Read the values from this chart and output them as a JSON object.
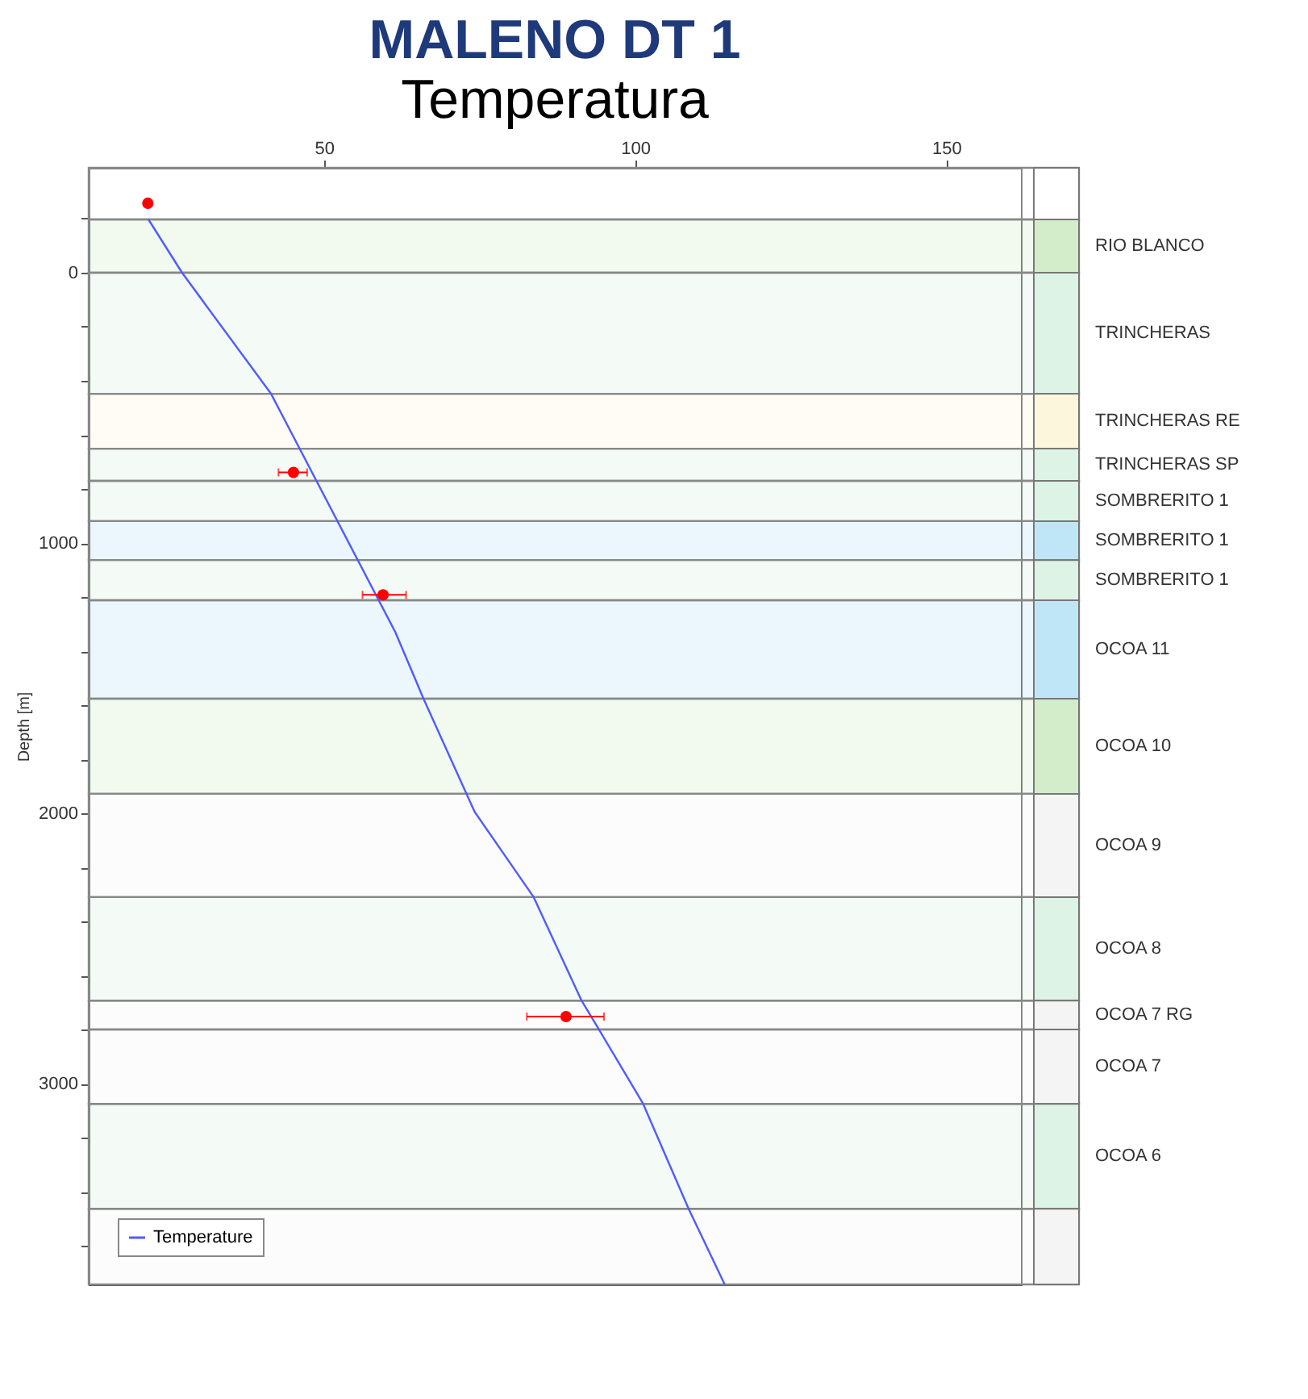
{
  "chart_data": {
    "type": "line",
    "title": "MALENO DT 1",
    "subtitle": "Temperatura",
    "ylabel": "Depth [m]",
    "legend": "bottom left",
    "xlim": [
      12.2,
      162
    ],
    "xticks": [
      50,
      100,
      150
    ],
    "ylim": [
      3743,
      -388
    ],
    "yticks": [
      {
        "value": -200,
        "label": null
      },
      0,
      {
        "value": 200,
        "label": null
      },
      {
        "value": 400,
        "label": null
      },
      {
        "value": 600,
        "label": null
      },
      {
        "value": 800,
        "label": null
      },
      1000,
      {
        "value": 1200,
        "label": null
      },
      {
        "value": 1400,
        "label": null
      },
      {
        "value": 1600,
        "label": null
      },
      {
        "value": 1800,
        "label": null
      },
      2000,
      {
        "value": 2200,
        "label": null
      },
      {
        "value": 2400,
        "label": null
      },
      {
        "value": 2600,
        "label": null
      },
      {
        "value": 2800,
        "label": null
      },
      3000,
      {
        "value": 3200,
        "label": null
      },
      {
        "value": 3400,
        "label": null
      },
      {
        "value": 3600,
        "label": null
      }
    ],
    "series": [
      {
        "name": "Temperature",
        "type": "line",
        "color": "#4f5bff",
        "x": [
          21.8,
          27.2,
          41.5,
          61.5,
          66,
          74.2,
          83.7,
          91.4,
          94.2,
          101.3,
          108.6,
          114.4
        ],
        "values": [
          -197,
          0,
          448,
          1331,
          1576,
          1994,
          2310,
          2693,
          2800,
          3075,
          3463,
          3743
        ]
      },
      {
        "type": "scatter",
        "color": "#ff0000",
        "marker": "circle",
        "x": [
          21.7,
          45.1,
          59.5,
          88.9
        ],
        "values": [
          -257,
          739,
          1192,
          2752
        ],
        "xerrors": [
          null,
          [
            42.7,
            47.3
          ],
          [
            56.2,
            63.2
          ],
          [
            82.6,
            95.0
          ]
        ]
      }
    ],
    "bands": [
      {
        "axis": "y",
        "from": -388,
        "to": -197,
        "label": null,
        "color": "#ffffff"
      },
      {
        "axis": "y",
        "from": -197,
        "to": 0,
        "label": "RIO BLANCO",
        "color": "#d3ecc9"
      },
      {
        "axis": "y",
        "from": 0,
        "to": 448,
        "label": "TRINCHERAS",
        "color": "#dcf3e6"
      },
      {
        "axis": "y",
        "from": 448,
        "to": 651,
        "label": "TRINCHERAS RE",
        "color": "#fcf6dc"
      },
      {
        "axis": "y",
        "from": 651,
        "to": 770,
        "label": "TRINCHERAS SP",
        "color": "#dcf3e6"
      },
      {
        "axis": "y",
        "from": 770,
        "to": 919,
        "label": "SOMBRERITO 1",
        "color": "#dcf3e6"
      },
      {
        "axis": "y",
        "from": 919,
        "to": 1063,
        "label": "SOMBRERITO 1",
        "color": "#bfe6f7"
      },
      {
        "axis": "y",
        "from": 1063,
        "to": 1212,
        "label": "SOMBRERITO 1",
        "color": "#dcf3e6"
      },
      {
        "axis": "y",
        "from": 1212,
        "to": 1576,
        "label": "OCOA 11",
        "color": "#bfe6f7"
      },
      {
        "axis": "y",
        "from": 1576,
        "to": 1928,
        "label": "OCOA 10",
        "color": "#d3ecc9"
      },
      {
        "axis": "y",
        "from": 1928,
        "to": 2310,
        "label": "OCOA 9",
        "color": "#f4f4f4"
      },
      {
        "axis": "y",
        "from": 2310,
        "to": 2693,
        "label": "OCOA 8",
        "color": "#dcf3e6"
      },
      {
        "axis": "y",
        "from": 2693,
        "to": 2800,
        "label": "OCOA 7  RG",
        "color": "#f4f4f4"
      },
      {
        "axis": "y",
        "from": 2800,
        "to": 3075,
        "label": "OCOA 7",
        "color": "#f4f4f4"
      },
      {
        "axis": "y",
        "from": 3075,
        "to": 3463,
        "label": "OCOA 6",
        "color": "#dcf3e6"
      },
      {
        "axis": "y",
        "from": 3463,
        "to": 3743,
        "label": null,
        "color": "#f4f4f4"
      }
    ]
  }
}
